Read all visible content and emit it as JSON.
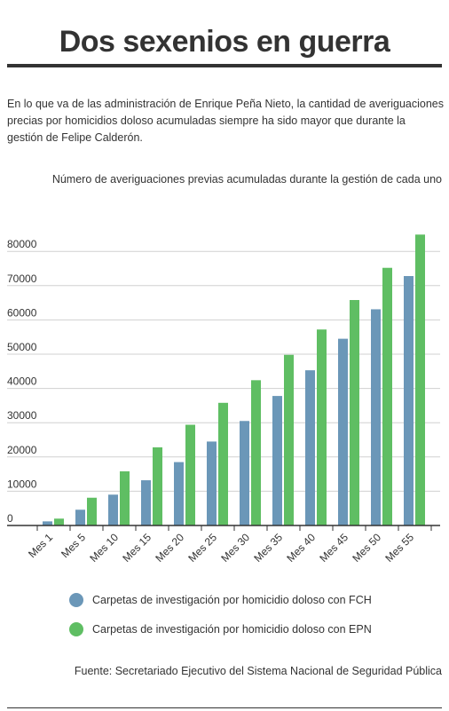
{
  "title": "Dos sexenios en guerra",
  "intro": "En lo que va de las administración de Enrique Peña Nieto, la cantidad de averiguaciones precias por homicidios doloso acumuladas siempre ha sido mayor que durante la gestión de Felipe Calderón.",
  "subtitle": "Número de averiguaciones previas acumuladas durante la gestión de cada uno",
  "source": "Fuente: Secretariado Ejecutivo del Sistema Nacional de Seguridad Pública",
  "colors": {
    "fch": "#6b97b8",
    "epn": "#5fbe63",
    "text": "#333333",
    "grid": "#d0d0d0"
  },
  "chart_data": {
    "type": "bar",
    "categories": [
      "Mes 1",
      "Mes 5",
      "Mes 10",
      "Mes 15",
      "Mes 20",
      "Mes 25",
      "Mes 30",
      "Mes 35",
      "Mes 40",
      "Mes 45",
      "Mes 50",
      "Mes 55"
    ],
    "series": [
      {
        "name": "Carpetas de investigación por homicidio doloso con FCH",
        "values": [
          1200,
          4600,
          9000,
          13200,
          18500,
          24500,
          30500,
          37800,
          45300,
          54500,
          63100,
          72800
        ]
      },
      {
        "name": "Carpetas de investigación por homicidio doloso con EPN",
        "values": [
          2000,
          8100,
          15800,
          22800,
          29400,
          35800,
          42400,
          49800,
          57200,
          65800,
          75200,
          84900
        ]
      }
    ],
    "yticks": [
      0,
      10000,
      20000,
      30000,
      40000,
      50000,
      60000,
      70000,
      80000
    ],
    "ylim": [
      0,
      88000
    ],
    "grid": true,
    "legend": "bottom"
  }
}
